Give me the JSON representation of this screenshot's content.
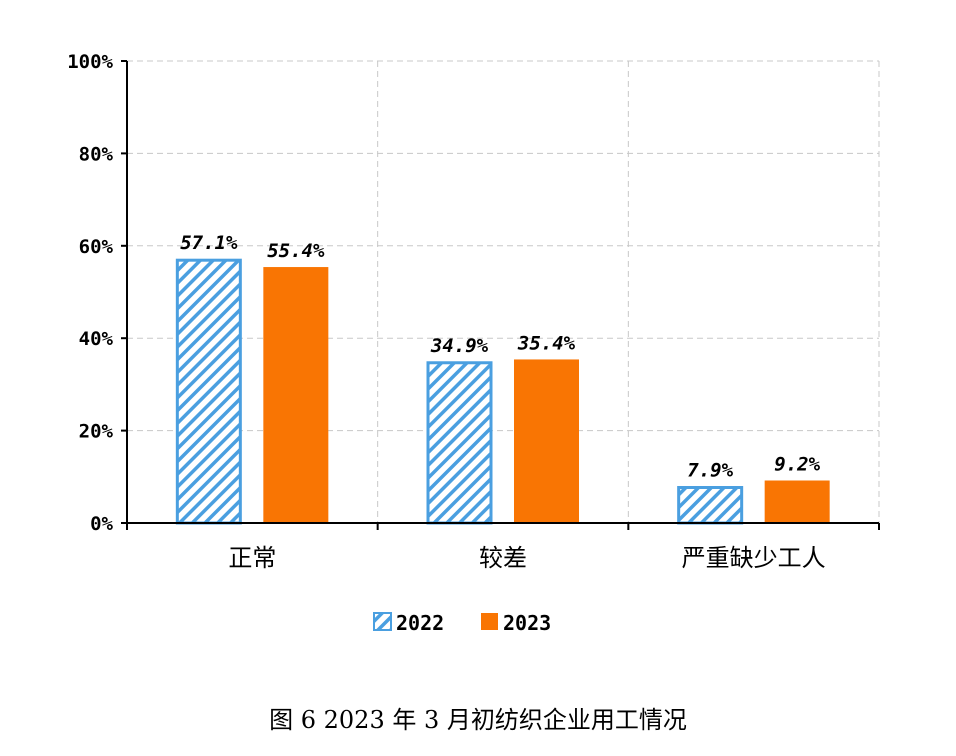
{
  "chart_data": {
    "type": "bar",
    "categories": [
      "正常",
      "较差",
      "严重缺少工人"
    ],
    "series": [
      {
        "name": "2022",
        "values": [
          57.1,
          34.9,
          7.9
        ],
        "labels": [
          "57.1%",
          "34.9%",
          "7.9%"
        ],
        "color": "#4a9fe0",
        "pattern": "diagonal-hatch"
      },
      {
        "name": "2023",
        "values": [
          55.4,
          35.4,
          9.2
        ],
        "labels": [
          "55.4%",
          "35.4%",
          "9.2%"
        ],
        "color": "#f97503"
      }
    ],
    "ylim": [
      0,
      100
    ],
    "yticks": [
      "0%",
      "20%",
      "40%",
      "60%",
      "80%",
      "100%"
    ],
    "grid": true,
    "legend": "bottom"
  },
  "caption": "图 6   2023 年 3 月初纺织企业用工情况"
}
